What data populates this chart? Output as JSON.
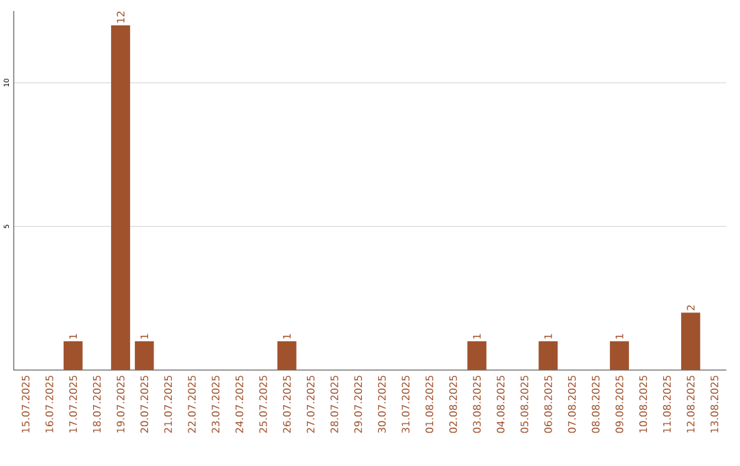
{
  "chart_data": {
    "type": "bar",
    "categories": [
      "15.07.2025",
      "16.07.2025",
      "17.07.2025",
      "18.07.2025",
      "19.07.2025",
      "20.07.2025",
      "21.07.2025",
      "22.07.2025",
      "23.07.2025",
      "24.07.2025",
      "25.07.2025",
      "26.07.2025",
      "27.07.2025",
      "28.07.2025",
      "29.07.2025",
      "30.07.2025",
      "31.07.2025",
      "01.08.2025",
      "02.08.2025",
      "03.08.2025",
      "04.08.2025",
      "05.08.2025",
      "06.08.2025",
      "07.08.2025",
      "08.08.2025",
      "09.08.2025",
      "10.08.2025",
      "11.08.2025",
      "12.08.2025",
      "13.08.2025"
    ],
    "values": [
      0,
      0,
      1,
      0,
      12,
      1,
      0,
      0,
      0,
      0,
      0,
      1,
      0,
      0,
      0,
      0,
      0,
      0,
      0,
      1,
      0,
      0,
      1,
      0,
      0,
      1,
      0,
      0,
      2,
      0
    ],
    "value_labels": [
      null,
      null,
      "1",
      null,
      "12",
      "1",
      null,
      null,
      null,
      null,
      null,
      "1",
      null,
      null,
      null,
      null,
      null,
      null,
      null,
      "1",
      null,
      null,
      "1",
      null,
      null,
      "1",
      null,
      null,
      "2",
      null
    ],
    "color": "#a0522d",
    "ylim": [
      0,
      12.5
    ],
    "yticks": [
      5,
      10
    ],
    "grid": "y"
  }
}
